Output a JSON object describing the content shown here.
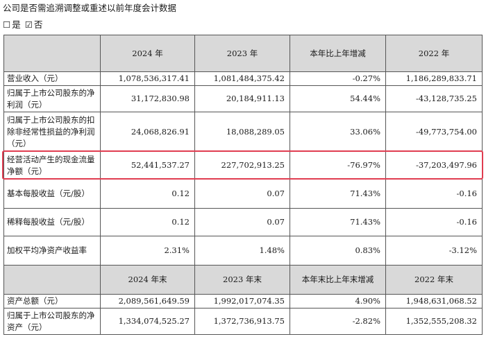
{
  "intro": "公司是否需追溯调整或重述以前年度会计数据",
  "choices": [
    {
      "mark": "☐",
      "label": "是"
    },
    {
      "mark": "☑",
      "label": "否"
    }
  ],
  "header1": [
    "",
    "2024 年",
    "2023 年",
    "本年比上年增减",
    "2022 年"
  ],
  "rows1": [
    {
      "label": "营业收入（元）",
      "values": [
        "1,078,536,317.41",
        "1,081,484,375.42",
        "-0.27%",
        "1,186,289,833.71"
      ]
    },
    {
      "label": "归属于上市公司股东的净利润（元）",
      "values": [
        "31,172,830.98",
        "20,184,911.13",
        "54.44%",
        "-43,128,735.25"
      ]
    },
    {
      "label": "归属于上市公司股东的扣除非经常性损益的净利润（元）",
      "values": [
        "24,068,826.91",
        "18,088,289.05",
        "33.06%",
        "-49,773,754.00"
      ]
    },
    {
      "label": "经营活动产生的现金流量净额（元）",
      "values": [
        "52,441,537.27",
        "227,702,913.25",
        "-76.97%",
        "-37,203,497.96"
      ]
    },
    {
      "label": "基本每股收益（元/股）",
      "values": [
        "0.12",
        "0.07",
        "71.43%",
        "-0.16"
      ]
    },
    {
      "label": "稀释每股收益（元/股）",
      "values": [
        "0.12",
        "0.07",
        "71.43%",
        "-0.16"
      ]
    },
    {
      "label": "加权平均净资产收益率",
      "values": [
        "2.31%",
        "1.48%",
        "0.83%",
        "-3.12%"
      ]
    }
  ],
  "header2": [
    "",
    "2024 年末",
    "2023 年末",
    "本年末比上年末增减",
    "2022 年末"
  ],
  "rows2": [
    {
      "label": "资产总额（元）",
      "values": [
        "2,089,561,649.59",
        "1,992,017,074.35",
        "4.90%",
        "1,948,631,068.52"
      ]
    },
    {
      "label": "归属于上市公司股东的净资产（元）",
      "values": [
        "1,334,074,525.27",
        "1,372,736,913.75",
        "-2.82%",
        "1,352,555,208.32"
      ]
    }
  ],
  "highlight_color": "#e03c50",
  "header_color": "#d9d9d9"
}
